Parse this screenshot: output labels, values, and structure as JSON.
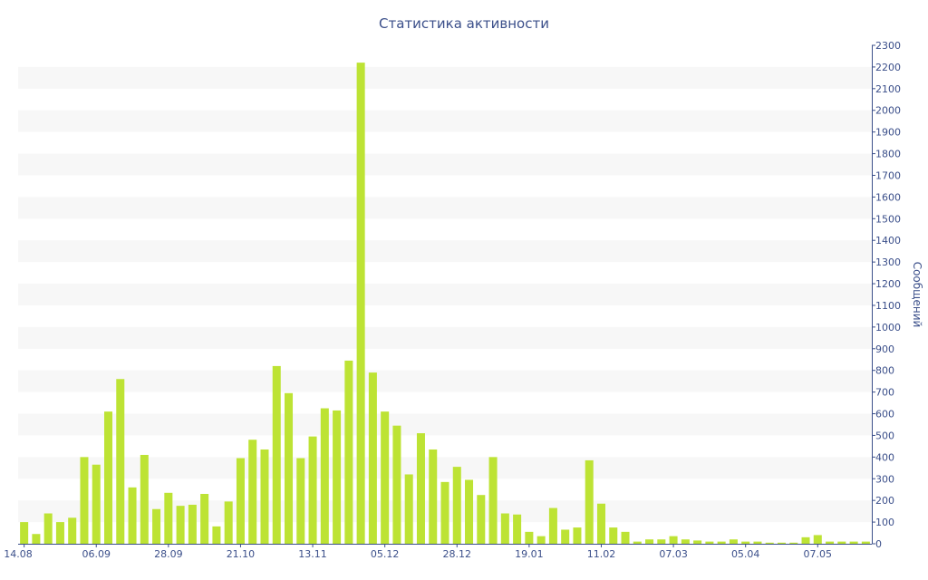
{
  "chart_data": {
    "type": "bar",
    "title": "Статистика активности",
    "xlabel": "",
    "ylabel": "Сообщений",
    "ylim": [
      0,
      2300
    ],
    "y_tick_step": 100,
    "y_axis_side": "right",
    "grid": "alternating horizontal bands",
    "legend": "none",
    "colors": {
      "bar": "#bde334",
      "band": "#f7f7f7",
      "axis": "#3b4f8a",
      "text": "#3b4f8a"
    },
    "x_tick_labels": [
      {
        "index": 0,
        "label": "14.08"
      },
      {
        "index": 6,
        "label": "06.09"
      },
      {
        "index": 12,
        "label": "28.09"
      },
      {
        "index": 18,
        "label": "21.10"
      },
      {
        "index": 24,
        "label": "13.11"
      },
      {
        "index": 30,
        "label": "05.12"
      },
      {
        "index": 36,
        "label": "28.12"
      },
      {
        "index": 42,
        "label": "19.01"
      },
      {
        "index": 48,
        "label": "11.02"
      },
      {
        "index": 54,
        "label": "07.03"
      },
      {
        "index": 60,
        "label": "05.04"
      },
      {
        "index": 66,
        "label": "07.05"
      }
    ],
    "values": [
      100,
      45,
      140,
      100,
      120,
      400,
      365,
      610,
      760,
      260,
      410,
      160,
      235,
      175,
      180,
      230,
      80,
      195,
      395,
      480,
      435,
      820,
      695,
      395,
      495,
      625,
      615,
      845,
      2220,
      790,
      610,
      545,
      320,
      510,
      435,
      285,
      355,
      295,
      225,
      400,
      140,
      135,
      55,
      35,
      165,
      65,
      75,
      385,
      185,
      75,
      55,
      10,
      20,
      20,
      35,
      20,
      15,
      10,
      10,
      20,
      10,
      10,
      5,
      5,
      5,
      30,
      40,
      10,
      10,
      10,
      10
    ]
  }
}
